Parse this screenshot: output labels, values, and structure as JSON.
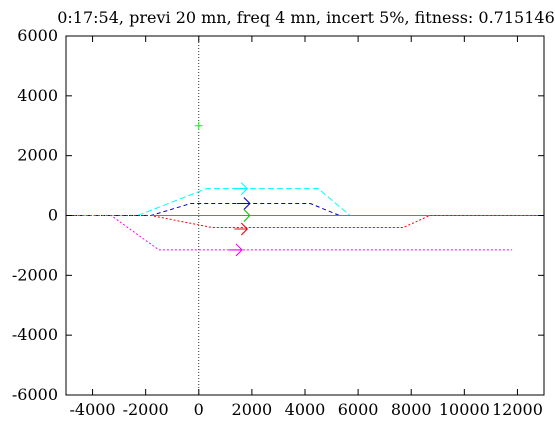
{
  "chart_data": {
    "type": "line",
    "title": "0:17:54, previ 20 mn, freq 4 mn, incert 5%, fitness: 0.715146",
    "xlabel": "",
    "ylabel": "",
    "xlim": [
      -5000,
      13000
    ],
    "ylim": [
      -6000,
      6000
    ],
    "x_ticks": [
      -4000,
      -2000,
      0,
      2000,
      4000,
      6000,
      8000,
      10000,
      12000
    ],
    "x_tick_labels": [
      "-4000",
      "-2000",
      "0",
      "2000",
      "4000",
      "6000",
      "8000",
      "10000",
      "12000"
    ],
    "y_ticks": [
      -6000,
      -4000,
      -2000,
      0,
      2000,
      4000,
      6000
    ],
    "y_tick_labels": [
      "-6000",
      "-4000",
      "-2000",
      "0",
      "2000",
      "4000",
      "6000"
    ],
    "grid": false,
    "legend": "none",
    "reference_lines": [
      {
        "axis": "x",
        "value": 0,
        "style": "dotted",
        "color": "#000000"
      },
      {
        "axis": "y",
        "value": 0,
        "style": "dotted",
        "color": "#000000"
      }
    ],
    "series": [
      {
        "color": "#00ffff",
        "dash": "6,3",
        "points": [
          [
            -5000,
            0
          ],
          [
            -2300,
            0
          ],
          [
            300,
            900
          ],
          [
            4500,
            900
          ],
          [
            5700,
            0
          ],
          [
            13000,
            0
          ]
        ],
        "marker": {
          "x": 1600,
          "y": 900,
          "shape": "plane"
        }
      },
      {
        "color": "#0000cc",
        "dash": "4,3",
        "points": [
          [
            -5000,
            0
          ],
          [
            -1800,
            0
          ],
          [
            -300,
            400
          ],
          [
            4200,
            400
          ],
          [
            5300,
            0
          ],
          [
            13000,
            0
          ]
        ],
        "marker": {
          "x": 1700,
          "y": 400,
          "shape": "plane"
        }
      },
      {
        "color": "#00cc00",
        "dash": "",
        "points": [
          [
            -1800,
            0
          ],
          [
            13000,
            0
          ]
        ],
        "marker": {
          "x": 1700,
          "y": 0,
          "shape": "plane"
        }
      },
      {
        "color": "#ff0000",
        "dash": "2,2",
        "points": [
          [
            -5000,
            0
          ],
          [
            -1800,
            0
          ],
          [
            500,
            -400
          ],
          [
            7700,
            -400
          ],
          [
            8700,
            0
          ],
          [
            13000,
            0
          ]
        ],
        "marker": {
          "x": 1600,
          "y": -450,
          "shape": "plane"
        }
      },
      {
        "color": "#ff00ff",
        "dash": "2,2",
        "points": [
          [
            -5000,
            0
          ],
          [
            -3300,
            0
          ],
          [
            -1500,
            -1150
          ],
          [
            11800,
            -1150
          ]
        ],
        "marker": {
          "x": 1400,
          "y": -1150,
          "shape": "plane"
        }
      }
    ],
    "extra_points": [
      {
        "x": 0,
        "y": 3000,
        "color": "#00ff00",
        "shape": "plus"
      }
    ]
  }
}
